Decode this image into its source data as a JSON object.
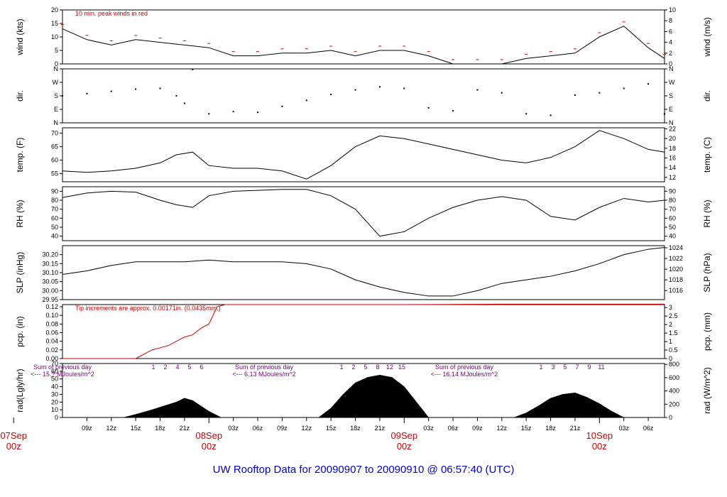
{
  "title": "UW Rooftop Data for 20090907  to  20090910 @ 06:57:40  (UTC)",
  "x_axis": {
    "hour_ticks": [
      "09z",
      "12z",
      "15z",
      "18z",
      "21z",
      "03z",
      "06z",
      "09z",
      "12z",
      "15z",
      "18z",
      "21z",
      "03z",
      "06z",
      "09z",
      "12z",
      "15z",
      "18z",
      "21z",
      "03z",
      "06z"
    ],
    "day_labels": [
      {
        "day": "07Sep",
        "hour": "00z"
      },
      {
        "day": "08Sep",
        "hour": "00z"
      },
      {
        "day": "09Sep",
        "hour": "00z"
      },
      {
        "day": "10Sep",
        "hour": "00z"
      }
    ]
  },
  "chart_data": [
    {
      "type": "line",
      "ylabel_left": "wind (kts)",
      "ylabel_right": "wind (m/s)",
      "ylim": [
        0,
        20
      ],
      "yticks_left": [
        "0",
        "5",
        "10",
        "15",
        "20"
      ],
      "ylim_right": [
        0,
        10
      ],
      "yticks_right": [
        "0",
        "2",
        "4",
        "6",
        "8",
        "10"
      ],
      "annotation": "10 min. peak winds in red",
      "series_note": "black: wind speed, red dashes: 10 min peak",
      "x": [
        6,
        9,
        12,
        15,
        18,
        21,
        24,
        27,
        30,
        33,
        36,
        39,
        42,
        45,
        48,
        51,
        54,
        57,
        60,
        63,
        66,
        69,
        72,
        75,
        78,
        80
      ],
      "values": [
        13,
        9,
        7,
        9,
        8,
        7,
        6,
        3,
        3,
        4,
        4,
        5,
        3,
        5,
        5,
        3,
        0,
        0,
        0,
        2,
        3,
        4,
        10,
        14,
        6,
        2
      ]
    },
    {
      "type": "scatter",
      "ylabel_left": "dir.",
      "ylabel_right": "dir.",
      "yticks_left": [
        "N",
        "E",
        "S",
        "W",
        "N"
      ],
      "yticks_right": [
        "N",
        "E",
        "S",
        "W",
        "N"
      ],
      "ylim": [
        0,
        360
      ],
      "x": [
        6,
        9,
        12,
        15,
        18,
        20,
        21,
        22,
        24,
        27,
        30,
        33,
        36,
        39,
        42,
        45,
        48,
        51,
        54,
        57,
        60,
        63,
        66,
        69,
        72,
        75,
        78,
        80
      ],
      "values": [
        180,
        195,
        210,
        225,
        230,
        180,
        130,
        355,
        60,
        75,
        70,
        110,
        150,
        190,
        220,
        240,
        230,
        100,
        80,
        220,
        200,
        60,
        50,
        185,
        200,
        230,
        260,
        60
      ]
    },
    {
      "type": "line",
      "ylabel_left": "temp. (F)",
      "ylabel_right": "temp. (C)",
      "ylim": [
        52,
        72
      ],
      "yticks_left": [
        "55",
        "60",
        "65",
        "70"
      ],
      "ylim_right": [
        11.1,
        22.2
      ],
      "yticks_right": [
        "12",
        "14",
        "16",
        "18",
        "20",
        "22"
      ],
      "x": [
        6,
        9,
        12,
        15,
        18,
        20,
        22,
        24,
        27,
        30,
        33,
        36,
        39,
        42,
        45,
        48,
        51,
        54,
        57,
        60,
        63,
        66,
        69,
        72,
        75,
        78,
        80
      ],
      "values": [
        56,
        55.5,
        56,
        57,
        59,
        62,
        63,
        58,
        57,
        57,
        56,
        53,
        58,
        65,
        69,
        68,
        66,
        64,
        62,
        60,
        59,
        61,
        65,
        71,
        68,
        64,
        63
      ]
    },
    {
      "type": "line",
      "ylabel_left": "RH (%)",
      "ylabel_right": "RH (%)",
      "ylim": [
        35,
        95
      ],
      "yticks_left": [
        "40",
        "50",
        "60",
        "70",
        "80",
        "90"
      ],
      "yticks_right": [
        "40",
        "50",
        "60",
        "70",
        "80",
        "90"
      ],
      "x": [
        6,
        9,
        12,
        15,
        18,
        20,
        22,
        24,
        27,
        30,
        33,
        36,
        39,
        42,
        45,
        48,
        51,
        54,
        57,
        60,
        63,
        66,
        69,
        72,
        75,
        78,
        80
      ],
      "values": [
        83,
        88,
        90,
        89,
        80,
        75,
        72,
        85,
        90,
        91,
        92,
        92,
        85,
        70,
        40,
        45,
        60,
        72,
        80,
        84,
        80,
        62,
        58,
        72,
        82,
        78,
        80
      ]
    },
    {
      "type": "line",
      "ylabel_left": "SLP (inHg)",
      "ylabel_right": "SLP (hPa)",
      "ylim": [
        29.95,
        30.25
      ],
      "yticks_left": [
        "29.95",
        "30.00",
        "30.05",
        "30.10",
        "30.15",
        "30.20"
      ],
      "ylim_right": [
        1014.3,
        1024.4
      ],
      "yticks_right": [
        "1016",
        "1018",
        "1020",
        "1022",
        "1024"
      ],
      "x": [
        6,
        9,
        12,
        15,
        18,
        21,
        24,
        27,
        30,
        33,
        36,
        39,
        42,
        45,
        48,
        51,
        54,
        57,
        60,
        63,
        66,
        69,
        72,
        75,
        78,
        80
      ],
      "values": [
        30.09,
        30.11,
        30.14,
        30.16,
        30.16,
        30.16,
        30.17,
        30.16,
        30.16,
        30.16,
        30.15,
        30.12,
        30.06,
        30.02,
        29.99,
        29.97,
        29.97,
        30.0,
        30.04,
        30.06,
        30.08,
        30.11,
        30.15,
        30.2,
        30.23,
        30.24
      ]
    },
    {
      "type": "line",
      "ylabel_left": "pcp. (in)",
      "ylabel_right": "pcp. (mm)",
      "ylim": [
        0,
        0.125
      ],
      "yticks_left": [
        "0.00",
        "0.02",
        "0.04",
        "0.06",
        "0.08",
        "0.10",
        "0.12"
      ],
      "ylim_right": [
        0,
        3.175
      ],
      "yticks_right": [
        "0",
        "0.5",
        "1",
        "1.5",
        "2",
        "2.5",
        "3"
      ],
      "annotation": "Tip increments are approx. 0.00171in. (0.0435mm.)",
      "x": [
        6,
        12,
        15,
        16,
        17,
        18,
        19,
        20,
        21,
        22,
        23,
        24,
        25,
        26,
        27,
        36,
        48,
        60,
        72,
        80
      ],
      "values": [
        0,
        0,
        0,
        0.01,
        0.02,
        0.025,
        0.03,
        0.04,
        0.05,
        0.055,
        0.07,
        0.08,
        0.12,
        0.125,
        0.125,
        0.125,
        0.125,
        0.126,
        0.126,
        0.126
      ]
    },
    {
      "type": "area",
      "ylabel_left": "rad(Lgly/hr)",
      "ylabel_right": "rad (W/m^2)",
      "ylim": [
        0,
        70
      ],
      "yticks_left": [
        "0",
        "10",
        "20",
        "30",
        "40",
        "50",
        "60",
        "70"
      ],
      "ylim_right": [
        0,
        813
      ],
      "yticks_right": [
        "0",
        "200",
        "400",
        "600",
        "800"
      ],
      "annotations": [
        {
          "label": "Sum of previous day",
          "value": "<--- 15.? MJoules/m^2"
        },
        {
          "label": "Sum of previous day",
          "value": "<--- 6.13 MJoules/m^2"
        },
        {
          "label": "Sum of previous day",
          "value": "<--- 16.14 MJoules/m^2"
        }
      ],
      "hour_marks": [
        [
          "1",
          "2",
          "4",
          "5",
          "6"
        ],
        [
          "1",
          "2",
          "5",
          "8",
          "12",
          "15"
        ],
        [
          "1",
          "3",
          "5",
          "7",
          "9",
          "11"
        ]
      ],
      "x": [
        13.5,
        15,
        17,
        18.5,
        20,
        21,
        22,
        23,
        24,
        25.5,
        37.5,
        39,
        40.5,
        42,
        43.5,
        45,
        46.5,
        48,
        49.5,
        51,
        61.5,
        63,
        64.5,
        66,
        67.5,
        69,
        70.5,
        72,
        73.5,
        75
      ],
      "values": [
        0,
        4,
        10,
        15,
        20,
        25,
        22,
        15,
        8,
        0,
        0,
        12,
        30,
        45,
        52,
        55,
        52,
        40,
        20,
        0,
        0,
        6,
        15,
        25,
        30,
        32,
        26,
        18,
        8,
        0
      ]
    }
  ]
}
